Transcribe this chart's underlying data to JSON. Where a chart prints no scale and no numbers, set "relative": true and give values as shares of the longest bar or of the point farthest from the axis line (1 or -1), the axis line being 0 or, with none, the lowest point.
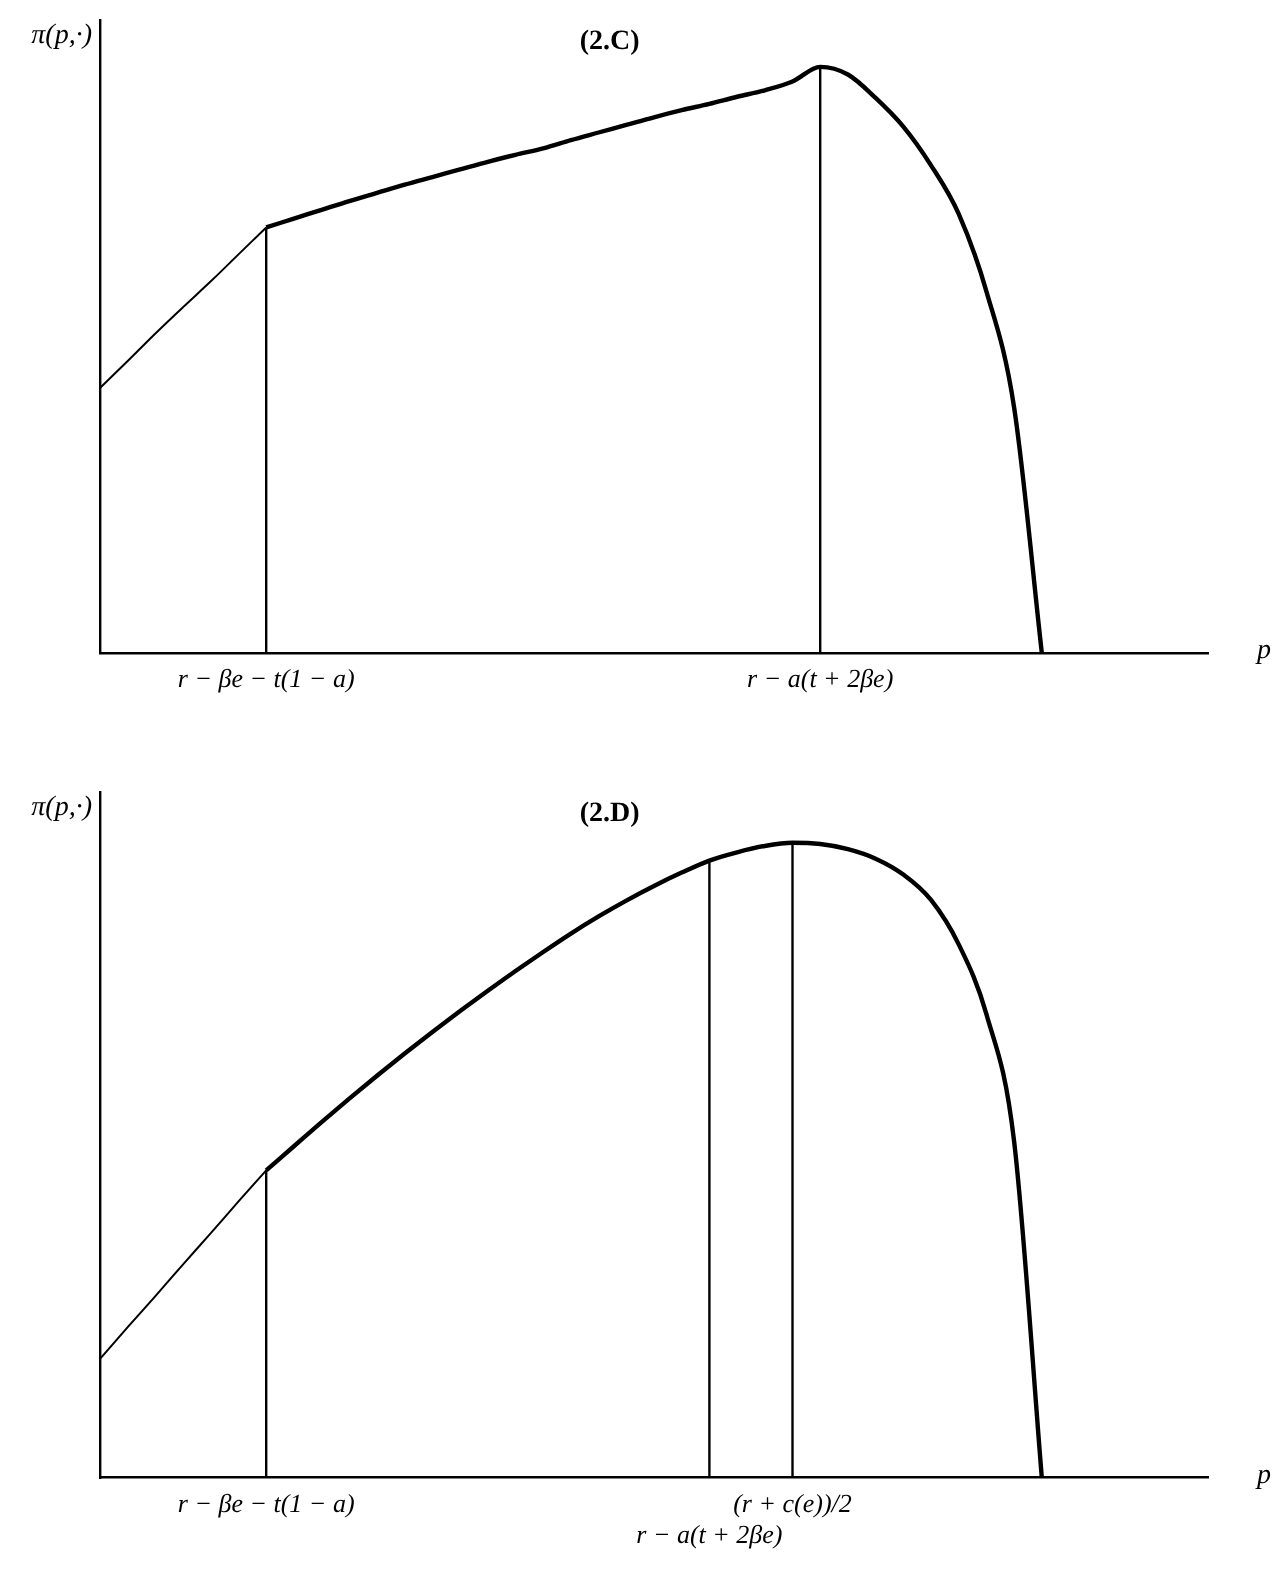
{
  "chart_data": [
    {
      "type": "line",
      "title": "(2.C)",
      "ylabel": "π(p,·)",
      "xlabel": "p",
      "relative": true,
      "categories": [
        null,
        null,
        null,
        null,
        null,
        null,
        "r − βe − t(1 − a)",
        null,
        null,
        null,
        null,
        null,
        null,
        null,
        null,
        null,
        null,
        null,
        null,
        null,
        null,
        null,
        null,
        null,
        null,
        null,
        "r − a(t + 2βe)",
        null,
        null,
        null,
        null,
        null,
        null,
        null,
        null,
        null,
        null,
        null,
        null,
        null,
        null
      ],
      "series": [
        {
          "color": "#000000",
          "values": [
            0.452,
            0.498,
            0.545,
            0.59,
            0.634,
            0.68,
            0.726,
            null,
            null,
            null,
            null,
            null,
            null,
            null,
            null,
            null,
            null,
            null,
            null,
            null,
            null,
            null,
            null,
            null,
            null,
            null,
            null,
            null,
            null,
            null,
            null,
            null,
            null,
            null,
            null,
            null,
            null,
            null,
            null,
            null,
            null
          ]
        },
        {
          "color": "#000000",
          "values": [
            null,
            null,
            null,
            null,
            null,
            null,
            0.726,
            0.741,
            0.756,
            0.771,
            0.785,
            0.799,
            0.812,
            0.825,
            0.838,
            0.85,
            0.861,
            0.875,
            0.888,
            0.901,
            0.914,
            0.926,
            0.937,
            0.949,
            0.96,
            0.975,
            1,
            0.987,
            0.947,
            0.898,
            0.832,
            0.749,
            0.617,
            0.419,
            0,
            null,
            null,
            null,
            null,
            null,
            null
          ]
        }
      ],
      "ref_lines": [
        {
          "axis": "x",
          "value": "r − βe − t(1 − a)"
        },
        {
          "axis": "x",
          "value": "r − a(t + 2βe)"
        }
      ]
    },
    {
      "type": "line",
      "title": "(2.D)",
      "ylabel": "π(p,·)",
      "xlabel": "p",
      "relative": true,
      "categories": [
        null,
        null,
        null,
        null,
        null,
        null,
        "r − βe − t(1 − a)",
        null,
        null,
        null,
        null,
        null,
        null,
        null,
        null,
        null,
        null,
        null,
        null,
        null,
        null,
        null,
        "r − a(t + 2βe)",
        null,
        null,
        "(r + c(e))/2",
        null,
        null,
        null,
        null,
        null,
        null,
        null,
        null,
        null,
        null,
        null,
        null,
        null,
        null,
        null
      ],
      "series": [
        {
          "color": "#000000",
          "values": [
            0.187,
            0.237,
            0.286,
            0.336,
            0.385,
            0.435,
            0.484,
            null,
            null,
            null,
            null,
            null,
            null,
            null,
            null,
            null,
            null,
            null,
            null,
            null,
            null,
            null,
            null,
            null,
            null,
            null,
            null,
            null,
            null,
            null,
            null,
            null,
            null,
            null,
            null,
            null,
            null,
            null,
            null,
            null,
            null
          ]
        },
        {
          "color": "#000000",
          "values": [
            null,
            null,
            null,
            null,
            null,
            null,
            0.484,
            0.522,
            0.56,
            0.597,
            0.633,
            0.668,
            0.702,
            0.735,
            0.767,
            0.798,
            0.828,
            0.857,
            0.884,
            0.909,
            0.932,
            0.953,
            0.972,
            0.985,
            0.995,
            1,
            0.998,
            0.99,
            0.975,
            0.95,
            0.91,
            0.84,
            0.73,
            0.53,
            0,
            null,
            null,
            null,
            null,
            null,
            null
          ]
        }
      ],
      "ref_lines": [
        {
          "axis": "x",
          "value": "r − βe − t(1 − a)"
        },
        {
          "axis": "x",
          "value": "r − a(t + 2βe)"
        },
        {
          "axis": "x",
          "value": "(r + c(e))/2"
        }
      ]
    }
  ]
}
